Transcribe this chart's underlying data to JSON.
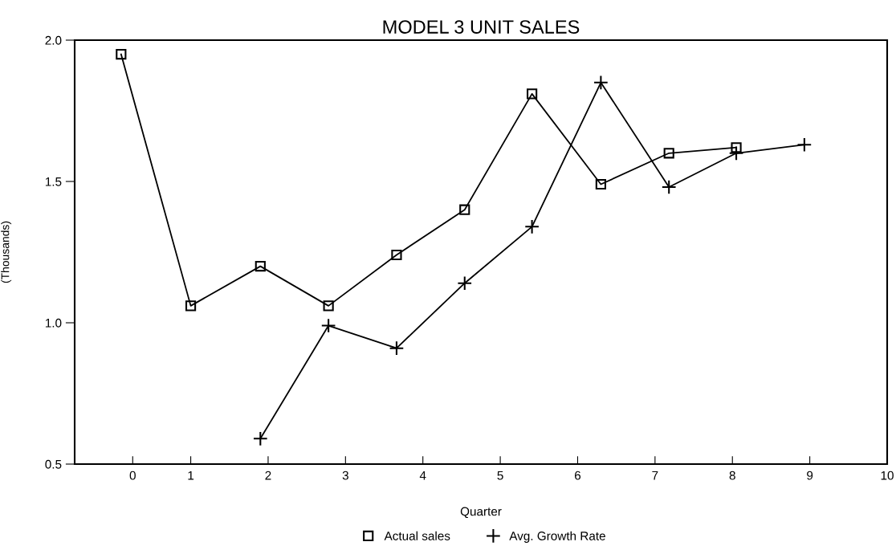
{
  "chart_data": {
    "type": "line",
    "title": "MODEL 3 UNIT SALES",
    "xlabel": "Quarter",
    "ylabel": "(Thousands)",
    "x": [
      0.1,
      1.0,
      1.9,
      2.78,
      3.66,
      4.54,
      5.41,
      6.3,
      7.18,
      8.05,
      8.93
    ],
    "series": [
      {
        "name": "Actual sales",
        "color": "#000000",
        "marker": "square",
        "values": [
          1.95,
          1.06,
          1.2,
          1.06,
          1.24,
          1.4,
          1.81,
          1.49,
          1.6,
          1.62,
          null
        ]
      },
      {
        "name": "Avg. Growth Rate",
        "color": "#000000",
        "marker": "cross",
        "values": [
          null,
          null,
          0.59,
          0.99,
          0.91,
          1.14,
          1.34,
          1.85,
          1.48,
          1.6,
          1.63
        ]
      }
    ],
    "xlim": [
      -0.5,
      10
    ],
    "xticks": [
      {
        "value": 0.25,
        "label": "0"
      },
      1,
      2,
      3,
      4,
      5,
      6,
      7,
      8,
      9,
      10
    ],
    "ylim": [
      0.5,
      2.0
    ],
    "yticks": [
      {
        "value": 0.5,
        "label": "0.5"
      },
      {
        "value": 1.0,
        "label": "1.0"
      },
      {
        "value": 1.5,
        "label": "1.5"
      },
      {
        "value": 2.0,
        "label": "2.0"
      }
    ],
    "grid": false,
    "legend": "bottom",
    "line_style": "solid"
  }
}
